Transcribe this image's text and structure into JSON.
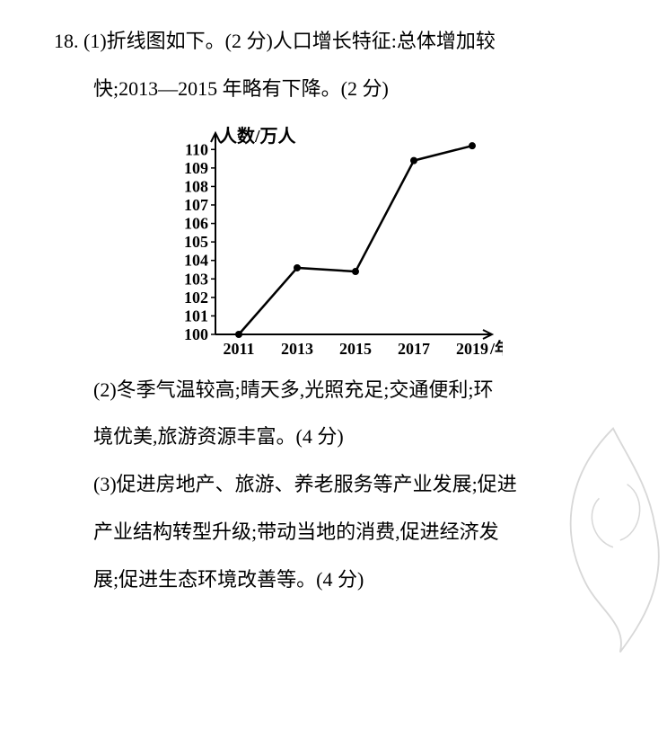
{
  "q_number": "18.",
  "part1_line1": "(1)折线图如下。(2 分)人口增长特征:总体增加较",
  "part1_line2": "快;2013—2015 年略有下降。(2 分)",
  "chart": {
    "type": "line",
    "y_axis_title": "人数/万人",
    "x_axis_title_suffix": "/年份",
    "x_labels": [
      "2011",
      "2013",
      "2015",
      "2017",
      "2019"
    ],
    "y_ticks": [
      100,
      101,
      102,
      103,
      104,
      105,
      106,
      107,
      108,
      109,
      110
    ],
    "values": [
      100.0,
      103.6,
      103.4,
      109.4,
      110.2
    ],
    "ylim": [
      100,
      110.5
    ],
    "line_color": "#000000",
    "marker_color": "#000000",
    "background_color": "#ffffff",
    "axis_color": "#000000",
    "tick_fontsize": 18,
    "line_width": 2.5,
    "marker_radius": 4
  },
  "part2_line1": "(2)冬季气温较高;晴天多,光照充足;交通便利;环",
  "part2_line2": "境优美,旅游资源丰富。(4 分)",
  "part3_line1": "(3)促进房地产、旅游、养老服务等产业发展;促进",
  "part3_line2": "产业结构转型升级;带动当地的消费,促进经济发",
  "part3_line3": "展;促进生态环境改善等。(4 分)"
}
